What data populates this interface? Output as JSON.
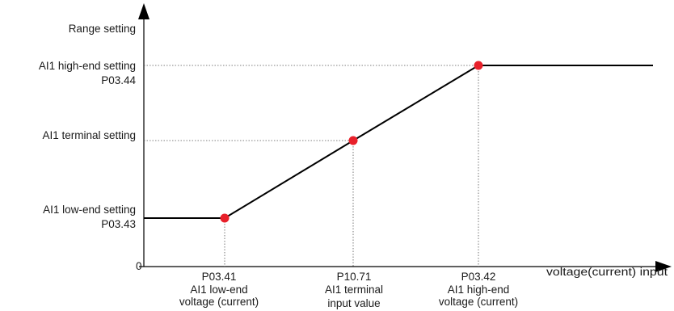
{
  "y_axis": {
    "title": "Range setting",
    "origin_label": "0"
  },
  "x_axis": {
    "title": "voltage(current) input"
  },
  "y_levels": {
    "high": {
      "line1": "AI1 high-end setting",
      "line2": "P03.44"
    },
    "terminal": {
      "line1": "AI1 terminal setting"
    },
    "low": {
      "line1": "AI1 low-end setting",
      "line2": "P03.43"
    }
  },
  "x_points": {
    "low": {
      "code": "P03.41",
      "line1": "AI1 low-end",
      "line2": "voltage (current)"
    },
    "terminal": {
      "code": "P10.71",
      "line1": "AI1 terminal",
      "line2": "input value"
    },
    "high": {
      "code": "P03.42",
      "line1": "AI1 high-end",
      "line2": "voltage (current)"
    }
  },
  "colors": {
    "curve": "#000000",
    "point": "#e8202a",
    "guide": "#555555"
  }
}
